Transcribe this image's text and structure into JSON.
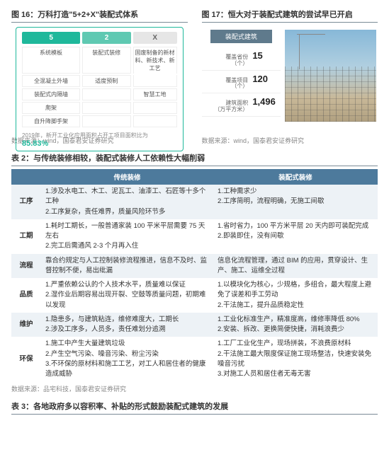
{
  "fig1": {
    "title": "图 16：万科打造\"5+2+X\"装配式体系",
    "headers": {
      "h5": "5",
      "h2": "2",
      "hx": "X"
    },
    "col5": [
      "系统模板",
      "全混凝土外墙",
      "装配式内隔墙",
      "爬架",
      "自升降脚手架"
    ],
    "col2": [
      "装配式装修",
      "适度预制",
      "",
      "",
      ""
    ],
    "colx": [
      "固废制备的新材料、新技术、新工艺",
      "",
      "智慧工地",
      "",
      ""
    ],
    "note": "2019年，新开工业化应用面积占开工项目面积比为",
    "pct": "85.83%",
    "source": "数据来源：wind，国泰君安证券研究"
  },
  "fig2": {
    "title": "图 17：恒大对于装配式建筑的尝试早已开启",
    "hdr": "装配式建筑",
    "stats": [
      {
        "label": "覆盖省份\n（个）",
        "value": "15"
      },
      {
        "label": "覆盖项目\n（个）",
        "value": "120"
      },
      {
        "label": "建筑面积\n（万平方米）",
        "value": "1,496"
      }
    ],
    "source": "数据来源：wind，国泰君安证券研究"
  },
  "table2": {
    "title": "表 2：与传统装修相较，装配式装修人工依赖性大幅削弱",
    "headers": [
      "",
      "传统装修",
      "装配式装修"
    ],
    "rows": [
      {
        "cat": "工序",
        "trad": "1.涉及水电工、木工、泥瓦工、油漆工、石匠等十多个工种\n2.工序复杂，责任难界，质量风险环节多",
        "pref": "1.工种需求少\n2.工序简明，流程明确，无施工间歇"
      },
      {
        "cat": "工期",
        "trad": "1.耗时工期长，一般普通家装 100 平米平层需要 75 天左右\n2.完工后需通风 2-3 个月再入住",
        "pref": "1.省时省力，100 平方米平层 20 天内即可装配完成\n2.即装即住，没有间歇"
      },
      {
        "cat": "流程",
        "trad": "靠合约规定与人工控制装修流程推进，信息不及时、监督控制不便，易出纰漏",
        "pref": "信息化流程管理，通过 BIM 的应用，贯穿设计、生产、施工、运维全过程"
      },
      {
        "cat": "品质",
        "trad": "1.严重依赖公认的个人技术水平，质量难以保证\n2.湿作业后期容易出现开裂、空鼓等质量问题，初期难以发现",
        "pref": "1.以模块化为核心，少规格，多组合，最大程度上避免了误差和手工劳动\n2.干法施工，提升品质稳定性"
      },
      {
        "cat": "维护",
        "trad": "1.隐患多，与建筑粘连，维修难度大，工期长\n2.涉及工序多，人员多，责任难划分追溯",
        "pref": "1.工业化标准生产，精准度高，维修率降低 80%\n2.安装、拆改、更换简便快捷，消耗浪费少"
      },
      {
        "cat": "环保",
        "trad": "1.施工中产生大量建筑垃圾\n2.产生空气污染、噪音污染、粉尘污染\n3.不环保的原材料和施工工艺，对工人和居住者的健康造成威胁",
        "pref": "1.工厂工业化生产，现场拼装，不浪费原材料\n2.干法施工最大限度保证施工现场整洁，快速安装免噪音污扰\n3.对施工人员和居住者无毒无害"
      }
    ],
    "source": "数据来源：品宅科技，国泰君安证券研究"
  },
  "table3": {
    "title": "表 3：各地政府多以容积率、补贴的形式鼓励装配式建筑的发展"
  }
}
